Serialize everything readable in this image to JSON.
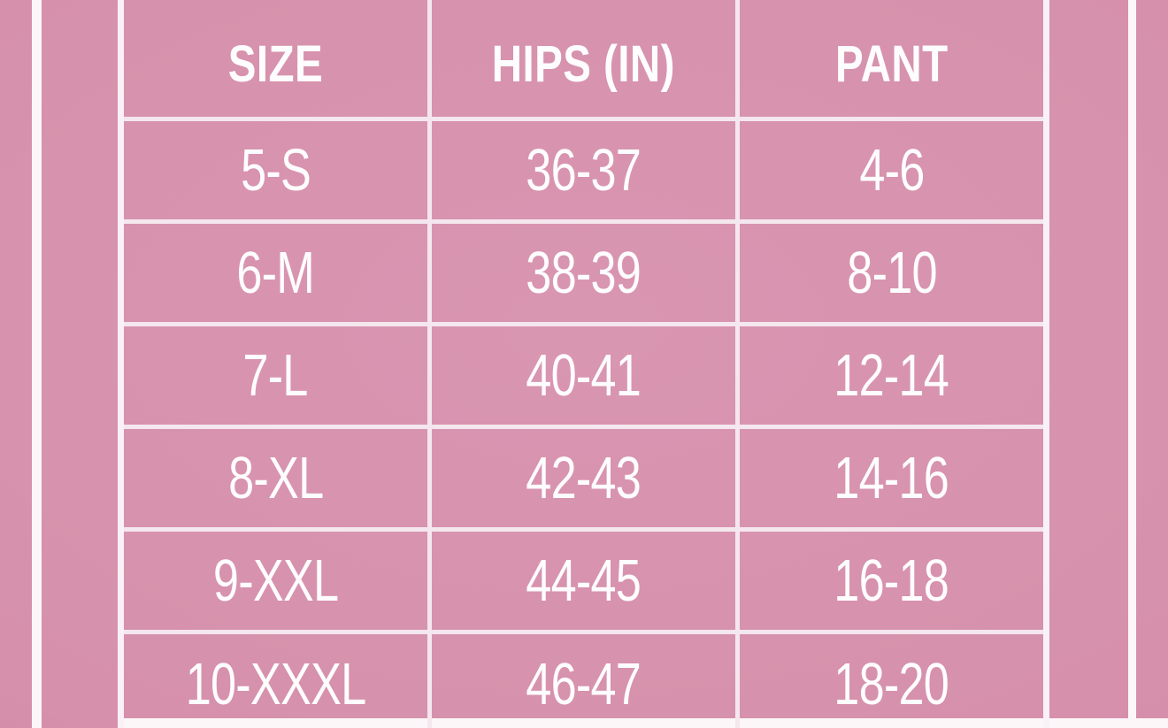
{
  "colors": {
    "background_pink": "#d690ab",
    "vignette_edge": "#ca809d",
    "grid_line": "#f4e7ee",
    "frame_line": "#fcf6f9",
    "text": "#fefdfe"
  },
  "chart_data": {
    "type": "table",
    "title": "",
    "columns": [
      "SIZE",
      "HIPS (IN)",
      "PANT"
    ],
    "rows": [
      [
        "5-S",
        "36-37",
        "4-6"
      ],
      [
        "6-M",
        "38-39",
        "8-10"
      ],
      [
        "7-L",
        "40-41",
        "12-14"
      ],
      [
        "8-XL",
        "42-43",
        "14-16"
      ],
      [
        "9-XXL",
        "44-45",
        "16-18"
      ],
      [
        "10-XXXL",
        "46-47",
        "18-20"
      ]
    ]
  }
}
